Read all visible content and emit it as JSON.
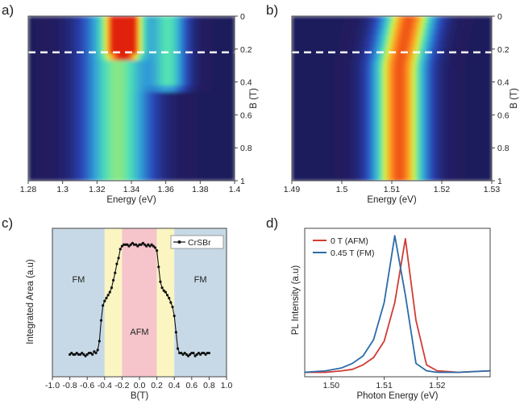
{
  "panel_labels": [
    "a)",
    "b)",
    "c)",
    "d)"
  ],
  "chart_data": [
    {
      "id": "a",
      "type": "heatmap",
      "xlabel": "Energy (eV)",
      "ylabel": "B (T)",
      "xlim": [
        1.28,
        1.4
      ],
      "ylim": [
        0,
        1
      ],
      "x_ticks": [
        1.28,
        1.3,
        1.32,
        1.34,
        1.36,
        1.38,
        1.4
      ],
      "x_tick_labels": [
        "1.28",
        "1.3",
        "1.32",
        "1.34",
        "1.36",
        "1.38",
        "1.4"
      ],
      "y_ticks": [
        0,
        0.2,
        0.4,
        0.6,
        0.8,
        1
      ],
      "y_tick_labels": [
        "0",
        "0.2",
        "0.4",
        "0.6",
        "0.8",
        "1"
      ],
      "y_axis_side": "right",
      "y_direction": "down",
      "dashed_line_B": 0.22,
      "colormap": [
        "#1e1550",
        "#2a45b5",
        "#2f9ad8",
        "#4ee0b8",
        "#d8f040",
        "#ff9020",
        "#e02010"
      ],
      "features": [
        {
          "name": "main emission",
          "center": 1.332,
          "width": 0.013,
          "intensity": 0.55,
          "B_range": [
            0,
            1
          ]
        },
        {
          "name": "bright peak",
          "center": 1.336,
          "width": 0.006,
          "intensity": 0.95,
          "B_range": [
            0,
            0.22
          ]
        },
        {
          "name": "side peak",
          "center": 1.362,
          "width": 0.007,
          "intensity": 0.45,
          "B_range": [
            0,
            0.42
          ]
        }
      ]
    },
    {
      "id": "b",
      "type": "heatmap",
      "xlabel": "Energy (eV)",
      "ylabel": "B (T)",
      "xlim": [
        1.49,
        1.53
      ],
      "ylim": [
        0,
        1
      ],
      "x_ticks": [
        1.49,
        1.5,
        1.51,
        1.52,
        1.53
      ],
      "x_tick_labels": [
        "1.49",
        "1.5",
        "1.51",
        "1.52",
        "1.53"
      ],
      "y_ticks": [
        0,
        0.2,
        0.4,
        0.6,
        0.8,
        1
      ],
      "y_tick_labels": [
        "0",
        "0.2",
        "0.4",
        "0.6",
        "0.8",
        "1"
      ],
      "y_axis_side": "right",
      "y_direction": "down",
      "dashed_line_B": 0.22,
      "colormap": [
        "#1e1550",
        "#2a45b5",
        "#2f9ad8",
        "#4ee0b8",
        "#d8f040",
        "#ff9020",
        "#e02010"
      ],
      "features": [
        {
          "name": "main emission",
          "center_low_B": 1.5135,
          "center_high_B": 1.5115,
          "width": 0.0035,
          "intensity": 0.9,
          "B_range": [
            0,
            1
          ]
        }
      ]
    },
    {
      "id": "c",
      "type": "line",
      "xlabel": "B(T)",
      "ylabel": "Integrated Area (a.u)",
      "xlim": [
        -1.0,
        1.0
      ],
      "ylim": [
        0,
        1
      ],
      "x_ticks": [
        -1.0,
        -0.8,
        -0.6,
        -0.4,
        -0.2,
        0.0,
        0.2,
        0.4,
        0.6,
        0.8,
        1.0
      ],
      "x_tick_labels": [
        "-1.0",
        "-0.8",
        "-0.6",
        "-0.4",
        "-0.2",
        "0.0",
        "0.2",
        "0.4",
        "0.6",
        "0.8",
        "1.0"
      ],
      "legend": [
        "CrSBr"
      ],
      "legend_position": "top-right",
      "regions": [
        {
          "label": "FM",
          "x0": -1.0,
          "x1": -0.4,
          "color": "#c7d9e6"
        },
        {
          "label": "",
          "x0": -0.4,
          "x1": -0.2,
          "color": "#fbf5c2"
        },
        {
          "label": "AFM",
          "x0": -0.2,
          "x1": 0.2,
          "color": "#f6c5cb"
        },
        {
          "label": "",
          "x0": 0.2,
          "x1": 0.4,
          "color": "#fbf5c2"
        },
        {
          "label": "FM",
          "x0": 0.4,
          "x1": 1.0,
          "color": "#c7d9e6"
        }
      ],
      "series": [
        {
          "name": "CrSBr",
          "x": [
            -0.8,
            -0.78,
            -0.76,
            -0.74,
            -0.72,
            -0.7,
            -0.68,
            -0.66,
            -0.64,
            -0.62,
            -0.6,
            -0.58,
            -0.56,
            -0.54,
            -0.52,
            -0.5,
            -0.48,
            -0.46,
            -0.44,
            -0.42,
            -0.4,
            -0.38,
            -0.36,
            -0.34,
            -0.32,
            -0.3,
            -0.28,
            -0.26,
            -0.24,
            -0.22,
            -0.2,
            -0.18,
            -0.16,
            -0.14,
            -0.12,
            -0.1,
            -0.08,
            -0.06,
            -0.04,
            -0.02,
            0.0,
            0.02,
            0.04,
            0.06,
            0.08,
            0.1,
            0.12,
            0.14,
            0.16,
            0.18,
            0.2,
            0.22,
            0.24,
            0.26,
            0.28,
            0.3,
            0.32,
            0.34,
            0.36,
            0.38,
            0.4,
            0.42,
            0.44,
            0.46,
            0.48,
            0.5,
            0.52,
            0.54,
            0.56,
            0.58,
            0.6,
            0.62,
            0.64,
            0.66,
            0.68,
            0.7,
            0.72,
            0.74,
            0.76,
            0.78,
            0.8
          ],
          "y": [
            0.15,
            0.16,
            0.15,
            0.15,
            0.16,
            0.15,
            0.15,
            0.16,
            0.15,
            0.14,
            0.15,
            0.16,
            0.16,
            0.15,
            0.17,
            0.16,
            0.18,
            0.24,
            0.38,
            0.48,
            0.51,
            0.53,
            0.55,
            0.57,
            0.6,
            0.65,
            0.7,
            0.76,
            0.8,
            0.86,
            0.88,
            0.89,
            0.89,
            0.89,
            0.88,
            0.89,
            0.9,
            0.89,
            0.89,
            0.88,
            0.89,
            0.89,
            0.9,
            0.89,
            0.88,
            0.89,
            0.88,
            0.89,
            0.88,
            0.87,
            0.85,
            0.74,
            0.64,
            0.6,
            0.58,
            0.57,
            0.55,
            0.53,
            0.5,
            0.47,
            0.41,
            0.3,
            0.19,
            0.16,
            0.16,
            0.15,
            0.16,
            0.15,
            0.14,
            0.15,
            0.16,
            0.16,
            0.14,
            0.15,
            0.16,
            0.15,
            0.16,
            0.16,
            0.15,
            0.16,
            0.16
          ]
        }
      ]
    },
    {
      "id": "d",
      "type": "line",
      "xlabel": "Photon Energy (eV)",
      "ylabel": "PL Intensity (a.u)",
      "xlim": [
        1.495,
        1.53
      ],
      "ylim": [
        0,
        1
      ],
      "x_ticks": [
        1.5,
        1.51,
        1.52
      ],
      "x_tick_labels": [
        "1.50",
        "1.51",
        "1.52"
      ],
      "legend_position": "top-left",
      "series": [
        {
          "name": "0 T (AFM)",
          "color": "#d23b34",
          "x": [
            1.495,
            1.499,
            1.502,
            1.504,
            1.506,
            1.508,
            1.51,
            1.512,
            1.514,
            1.516,
            1.518,
            1.52,
            1.524,
            1.53
          ],
          "y": [
            0.03,
            0.03,
            0.04,
            0.05,
            0.08,
            0.13,
            0.24,
            0.5,
            0.93,
            0.38,
            0.08,
            0.04,
            0.03,
            0.04
          ]
        },
        {
          "name": "0.45 T (FM)",
          "color": "#2c6ba8",
          "x": [
            1.495,
            1.499,
            1.502,
            1.504,
            1.506,
            1.508,
            1.51,
            1.512,
            1.514,
            1.516,
            1.518,
            1.52,
            1.524,
            1.53
          ],
          "y": [
            0.03,
            0.04,
            0.06,
            0.09,
            0.14,
            0.25,
            0.5,
            0.95,
            0.55,
            0.09,
            0.04,
            0.03,
            0.03,
            0.04
          ]
        }
      ]
    }
  ]
}
